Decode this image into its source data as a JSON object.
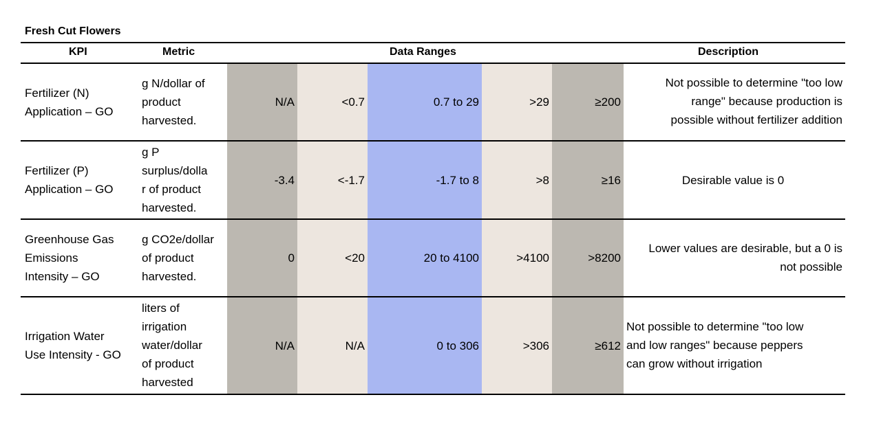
{
  "title": "Fresh Cut Flowers",
  "headers": {
    "kpi": "KPI",
    "metric": "Metric",
    "ranges": "Data Ranges",
    "description": "Description"
  },
  "colors": {
    "outer_range": "#bcb8b1",
    "middle_range": "#ede6df",
    "target_range": "#a9b7f2"
  },
  "rows": [
    {
      "kpi": "Fertilizer (N)\nApplication – GO",
      "metric": "g N/dollar of\nproduct\nharvested.",
      "ranges": [
        "N/A",
        "<0.7",
        "0.7 to 29",
        ">29",
        "≥200"
      ],
      "description": "Not possible to determine \"too low\nrange\" because production is\npossible without fertilizer addition"
    },
    {
      "kpi": "Fertilizer (P)\nApplication – GO",
      "metric": "g P\nsurplus/dolla\nr of product\nharvested.",
      "ranges": [
        "-3.4",
        "<-1.7",
        "-1.7 to 8",
        ">8",
        "≥16"
      ],
      "description": "Desirable value is 0"
    },
    {
      "kpi": "Greenhouse Gas\nEmissions\nIntensity – GO",
      "metric": "g CO2e/dollar\nof product\nharvested.",
      "ranges": [
        "0",
        "<20",
        "20 to 4100",
        ">4100",
        ">8200"
      ],
      "description": "Lower values are desirable, but a 0 is\nnot possible"
    },
    {
      "kpi": "Irrigation Water\nUse Intensity - GO",
      "metric": "liters of\nirrigation\nwater/dollar\nof product\nharvested",
      "ranges": [
        "N/A",
        "N/A",
        "0 to 306",
        ">306",
        "≥612"
      ],
      "description": "Not possible to determine \"too low\nand low ranges\" because peppers\ncan grow without irrigation"
    }
  ]
}
